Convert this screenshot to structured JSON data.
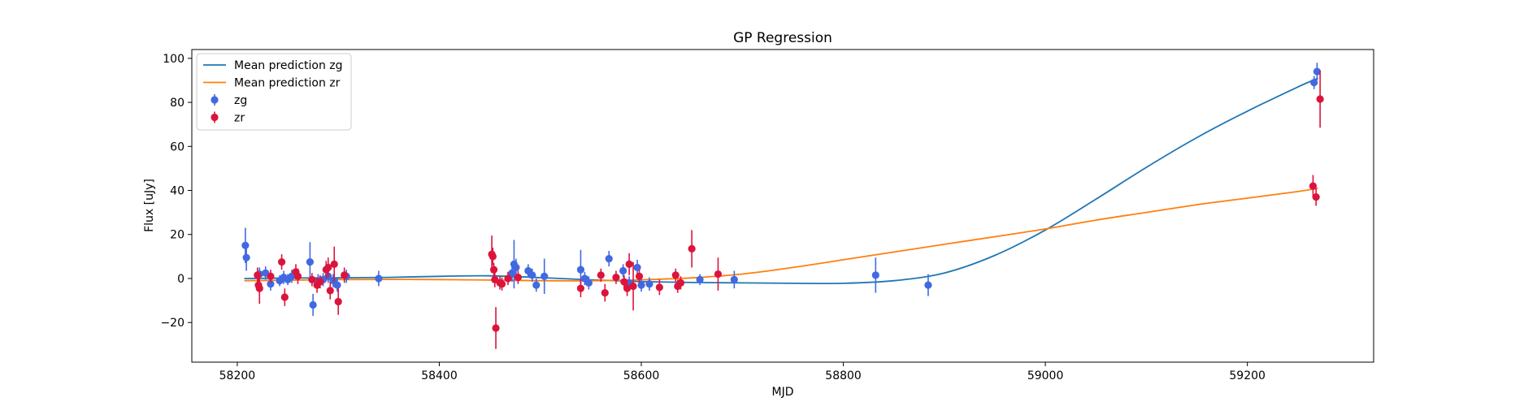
{
  "chart_data": {
    "type": "scatter",
    "title": "GP Regression",
    "xlabel": "MJD",
    "ylabel": "Flux [uJy]",
    "xlim": [
      58155,
      59325
    ],
    "ylim": [
      -38,
      104
    ],
    "xticks": [
      58200,
      58400,
      58600,
      58800,
      59000,
      59200
    ],
    "yticks": [
      -20,
      0,
      20,
      40,
      60,
      80,
      100
    ],
    "grid": false,
    "legend_position": "top-left",
    "colors": {
      "mean_zg": "#1f77b4",
      "mean_zr": "#ff7f0e",
      "zg": "#4169e1",
      "zr": "#dc143c"
    },
    "legend": [
      {
        "key": "mean_zg",
        "label": "Mean prediction zg",
        "kind": "line"
      },
      {
        "key": "mean_zr",
        "label": "Mean prediction zr",
        "kind": "line"
      },
      {
        "key": "zg",
        "label": "zg",
        "kind": "errorbar"
      },
      {
        "key": "zr",
        "label": "zr",
        "kind": "errorbar"
      }
    ],
    "lines": [
      {
        "key": "mean_zg",
        "x": [
          58207,
          58250,
          58300,
          58350,
          58400,
          58450,
          58500,
          58550,
          58600,
          58650,
          58700,
          58750,
          58800,
          58850,
          58900,
          58950,
          59000,
          59050,
          59100,
          59150,
          59200,
          59250,
          59270
        ],
        "y": [
          0,
          0.2,
          0.3,
          0.5,
          1.0,
          1.2,
          0.4,
          -0.6,
          -1.4,
          -1.8,
          -2.0,
          -2.2,
          -2.2,
          -1.0,
          2.5,
          10.5,
          22.0,
          36.0,
          50.5,
          64.0,
          76.0,
          87.0,
          91.0
        ]
      },
      {
        "key": "mean_zr",
        "x": [
          58207,
          58250,
          58300,
          58350,
          58400,
          58450,
          58500,
          58550,
          58600,
          58650,
          58700,
          58750,
          58800,
          58850,
          58900,
          58950,
          59000,
          59050,
          59100,
          59150,
          59200,
          59250,
          59270
        ],
        "y": [
          -1.0,
          -0.8,
          -0.5,
          -0.4,
          -0.5,
          -0.7,
          -1.0,
          -1.0,
          -0.6,
          0.3,
          2.0,
          5.0,
          8.5,
          12.0,
          15.5,
          19.0,
          22.5,
          26.5,
          30.0,
          33.5,
          36.5,
          39.5,
          41.0
        ]
      }
    ],
    "series": [
      {
        "key": "zg",
        "points": [
          {
            "x": 58208,
            "y": 15,
            "err": 8
          },
          {
            "x": 58209,
            "y": 9.5,
            "err": 6
          },
          {
            "x": 58222,
            "y": 2,
            "err": 3
          },
          {
            "x": 58228,
            "y": 2.5,
            "err": 3
          },
          {
            "x": 58233,
            "y": -2.5,
            "err": 3
          },
          {
            "x": 58242,
            "y": -1,
            "err": 2.5
          },
          {
            "x": 58246,
            "y": 0.5,
            "err": 3
          },
          {
            "x": 58250,
            "y": -0.5,
            "err": 2.5
          },
          {
            "x": 58254,
            "y": 1,
            "err": 3
          },
          {
            "x": 58272,
            "y": 7.5,
            "err": 9
          },
          {
            "x": 58275,
            "y": -12,
            "err": 5
          },
          {
            "x": 58280,
            "y": -1,
            "err": 3
          },
          {
            "x": 58285,
            "y": -0.5,
            "err": 3
          },
          {
            "x": 58290,
            "y": 1,
            "err": 3
          },
          {
            "x": 58295,
            "y": -1,
            "err": 3
          },
          {
            "x": 58299,
            "y": -3,
            "err": 3
          },
          {
            "x": 58308,
            "y": 1,
            "err": 3
          },
          {
            "x": 58340,
            "y": 0,
            "err": 3.5
          },
          {
            "x": 58472,
            "y": 2.5,
            "err": 4
          },
          {
            "x": 58474,
            "y": 6.5,
            "err": 11
          },
          {
            "x": 58476,
            "y": 5,
            "err": 4
          },
          {
            "x": 58488,
            "y": 3.5,
            "err": 3
          },
          {
            "x": 58492,
            "y": 1.5,
            "err": 3
          },
          {
            "x": 58496,
            "y": -3,
            "err": 3
          },
          {
            "x": 58504,
            "y": 1,
            "err": 8
          },
          {
            "x": 58540,
            "y": 4,
            "err": 9
          },
          {
            "x": 58544,
            "y": 0,
            "err": 3
          },
          {
            "x": 58548,
            "y": -2,
            "err": 3
          },
          {
            "x": 58568,
            "y": 9,
            "err": 3.5
          },
          {
            "x": 58582,
            "y": 3.5,
            "err": 3
          },
          {
            "x": 58588,
            "y": -2,
            "err": 3
          },
          {
            "x": 58596,
            "y": 5,
            "err": 3.5
          },
          {
            "x": 58600,
            "y": -3,
            "err": 3
          },
          {
            "x": 58608,
            "y": -2.5,
            "err": 3
          },
          {
            "x": 58658,
            "y": -0.5,
            "err": 2.5
          },
          {
            "x": 58692,
            "y": -0.5,
            "err": 4
          },
          {
            "x": 58832,
            "y": 1.5,
            "err": 8
          },
          {
            "x": 58884,
            "y": -3,
            "err": 5
          },
          {
            "x": 59266,
            "y": 89,
            "err": 3
          },
          {
            "x": 59269,
            "y": 94,
            "err": 4
          }
        ]
      },
      {
        "key": "zr",
        "points": [
          {
            "x": 58220,
            "y": 1.5,
            "err": 3.5
          },
          {
            "x": 58221,
            "y": -3,
            "err": 3
          },
          {
            "x": 58222,
            "y": -4.5,
            "err": 7
          },
          {
            "x": 58233,
            "y": 1,
            "err": 3
          },
          {
            "x": 58244,
            "y": 7.5,
            "err": 3.5
          },
          {
            "x": 58247,
            "y": -8.5,
            "err": 4
          },
          {
            "x": 58258,
            "y": 3,
            "err": 3.5
          },
          {
            "x": 58260,
            "y": 1,
            "err": 3.5
          },
          {
            "x": 58274,
            "y": -0.5,
            "err": 3
          },
          {
            "x": 58279,
            "y": -3,
            "err": 3.5
          },
          {
            "x": 58282,
            "y": -1.5,
            "err": 3
          },
          {
            "x": 58288,
            "y": 4,
            "err": 4
          },
          {
            "x": 58290,
            "y": 5,
            "err": 4.5
          },
          {
            "x": 58292,
            "y": -5.5,
            "err": 4
          },
          {
            "x": 58296,
            "y": 6.5,
            "err": 8
          },
          {
            "x": 58300,
            "y": -10.5,
            "err": 6
          },
          {
            "x": 58306,
            "y": 1.5,
            "err": 3.5
          },
          {
            "x": 58452,
            "y": 11,
            "err": 8.5
          },
          {
            "x": 58453,
            "y": 10,
            "err": 4
          },
          {
            "x": 58454,
            "y": 4,
            "err": 3
          },
          {
            "x": 58455,
            "y": -0.5,
            "err": 3.5
          },
          {
            "x": 58456,
            "y": -22.5,
            "err": 9.5
          },
          {
            "x": 58460,
            "y": -2,
            "err": 3
          },
          {
            "x": 58462,
            "y": -2.5,
            "err": 3
          },
          {
            "x": 58468,
            "y": 0,
            "err": 3
          },
          {
            "x": 58478,
            "y": 0.5,
            "err": 3
          },
          {
            "x": 58540,
            "y": -4.5,
            "err": 4
          },
          {
            "x": 58560,
            "y": 1.5,
            "err": 3
          },
          {
            "x": 58564,
            "y": -6.5,
            "err": 4
          },
          {
            "x": 58575,
            "y": 0.5,
            "err": 3
          },
          {
            "x": 58583,
            "y": -1.5,
            "err": 3
          },
          {
            "x": 58586,
            "y": -4.5,
            "err": 3.5
          },
          {
            "x": 58588,
            "y": 6.5,
            "err": 5
          },
          {
            "x": 58592,
            "y": -3.5,
            "err": 11
          },
          {
            "x": 58598,
            "y": 1,
            "err": 3
          },
          {
            "x": 58618,
            "y": -4,
            "err": 3.5
          },
          {
            "x": 58634,
            "y": 1.5,
            "err": 3
          },
          {
            "x": 58636,
            "y": -3.5,
            "err": 3
          },
          {
            "x": 58639,
            "y": -2,
            "err": 3
          },
          {
            "x": 58650,
            "y": 13.5,
            "err": 8.5
          },
          {
            "x": 58676,
            "y": 2,
            "err": 7.5
          },
          {
            "x": 59265,
            "y": 42,
            "err": 5
          },
          {
            "x": 59268,
            "y": 37,
            "err": 4
          },
          {
            "x": 59272,
            "y": 81.5,
            "err": 13
          }
        ]
      }
    ]
  }
}
